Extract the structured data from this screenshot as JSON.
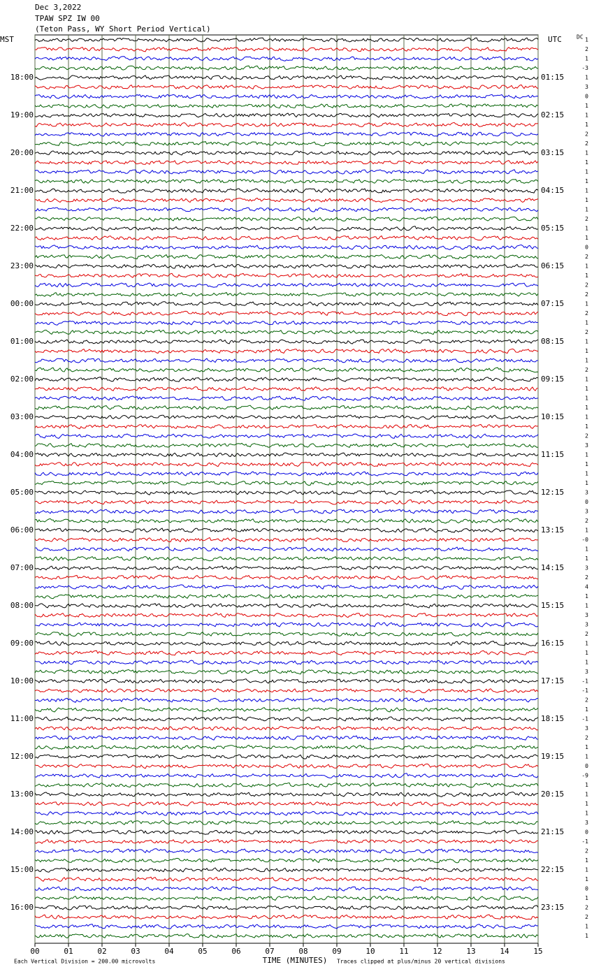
{
  "chart_data": {
    "type": "helicorder",
    "title_lines": [
      "Dec 3,2022",
      "TPAW SPZ IW 00",
      "(Teton Pass, WY Short Period Vertical)"
    ],
    "left_axis_label": "MST",
    "right_axis_label": "UTC",
    "dc_label": "DC",
    "xlabel": "TIME (MINUTES)",
    "xlim": [
      0,
      15
    ],
    "xticks": [
      {
        "value": 0,
        "label": "00"
      },
      {
        "value": 1,
        "label": "01"
      },
      {
        "value": 2,
        "label": "02"
      },
      {
        "value": 3,
        "label": "03"
      },
      {
        "value": 4,
        "label": "04"
      },
      {
        "value": 5,
        "label": "05"
      },
      {
        "value": 6,
        "label": "06"
      },
      {
        "value": 7,
        "label": "07"
      },
      {
        "value": 8,
        "label": "08"
      },
      {
        "value": 9,
        "label": "09"
      },
      {
        "value": 10,
        "label": "10"
      },
      {
        "value": 11,
        "label": "11"
      },
      {
        "value": 12,
        "label": "12"
      },
      {
        "value": 13,
        "label": "13"
      },
      {
        "value": 14,
        "label": "14"
      },
      {
        "value": 15,
        "label": "15"
      }
    ],
    "grid": true,
    "hour_labels_left": [
      "18:00",
      "19:00",
      "20:00",
      "21:00",
      "22:00",
      "23:00",
      "00:00",
      "01:00",
      "02:00",
      "03:00",
      "04:00",
      "05:00",
      "06:00",
      "07:00",
      "08:00",
      "09:00",
      "10:00",
      "11:00",
      "12:00",
      "13:00",
      "14:00",
      "15:00",
      "16:00"
    ],
    "hour_labels_right": [
      "01:15",
      "02:15",
      "03:15",
      "04:15",
      "05:15",
      "06:15",
      "07:15",
      "08:15",
      "09:15",
      "10:15",
      "11:15",
      "12:15",
      "13:15",
      "14:15",
      "15:15",
      "16:15",
      "17:15",
      "18:15",
      "19:15",
      "20:15",
      "21:15",
      "22:15",
      "23:15"
    ],
    "dc_offsets": [
      "1",
      "2",
      "1",
      "-3",
      "1",
      "3",
      "0",
      "1",
      "1",
      "1",
      "2",
      "2",
      "1",
      "1",
      "1",
      "1",
      "1",
      "1",
      "1",
      "2",
      "1",
      "1",
      "0",
      "2",
      "1",
      "1",
      "2",
      "2",
      "1",
      "2",
      "1",
      "2",
      "1",
      "1",
      "1",
      "2",
      "1",
      "1",
      "1",
      "1",
      "1",
      "1",
      "2",
      "3",
      "1",
      "1",
      "1",
      "1",
      "3",
      "0",
      "3",
      "2",
      "1",
      "-0",
      "1",
      "1",
      "3",
      "2",
      "4",
      "1",
      "1",
      "3",
      "3",
      "2",
      "1",
      "1",
      "1",
      "3",
      "-1",
      "-1",
      "2",
      "1",
      "-1",
      "3",
      "2",
      "1",
      "1",
      "0",
      "-9",
      "1",
      "1",
      "1",
      "1",
      "3",
      "0",
      "-1",
      "2",
      "1",
      "1",
      "1",
      "0",
      "1",
      "2",
      "2",
      "1",
      "1"
    ],
    "trace_colors": [
      "#000000",
      "#e00000",
      "#0000e0",
      "#006000"
    ],
    "footer_left": "Each Vertical Division =  200.00 microvolts",
    "footer_right": "Traces clipped at plus/minus 20 vertical divisions"
  }
}
